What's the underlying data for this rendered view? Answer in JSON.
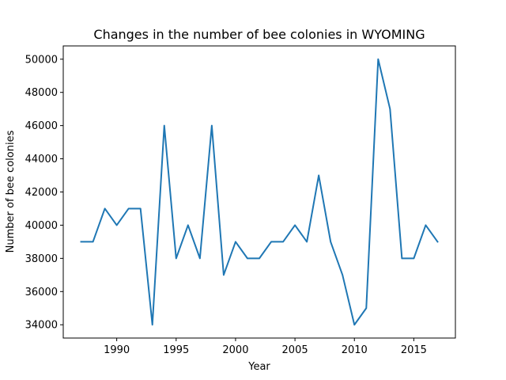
{
  "chart_data": {
    "type": "line",
    "title": "Changes in the number of bee colonies in WYOMING",
    "xlabel": "Year",
    "ylabel": "Number of bee colonies",
    "x": [
      1987,
      1988,
      1989,
      1990,
      1991,
      1992,
      1993,
      1994,
      1995,
      1996,
      1997,
      1998,
      1999,
      2000,
      2001,
      2002,
      2003,
      2004,
      2005,
      2006,
      2007,
      2008,
      2009,
      2010,
      2011,
      2012,
      2013,
      2014,
      2015,
      2016,
      2017
    ],
    "series": [
      {
        "values": [
          39000,
          39000,
          41000,
          40000,
          41000,
          41000,
          34000,
          46000,
          38000,
          40000,
          38000,
          46000,
          37000,
          39000,
          38000,
          38000,
          39000,
          39000,
          40000,
          39000,
          43000,
          39000,
          37000,
          34000,
          35000,
          50000,
          47000,
          38000,
          38000,
          40000,
          39000
        ],
        "color": "#1f77b4"
      }
    ],
    "xlim": [
      1985.5,
      2018.5
    ],
    "ylim": [
      33200,
      50800
    ],
    "xticks": [
      1990,
      1995,
      2000,
      2005,
      2010,
      2015
    ],
    "yticks": [
      34000,
      36000,
      38000,
      40000,
      42000,
      44000,
      46000,
      48000,
      50000
    ],
    "grid": false,
    "legend": "none"
  }
}
